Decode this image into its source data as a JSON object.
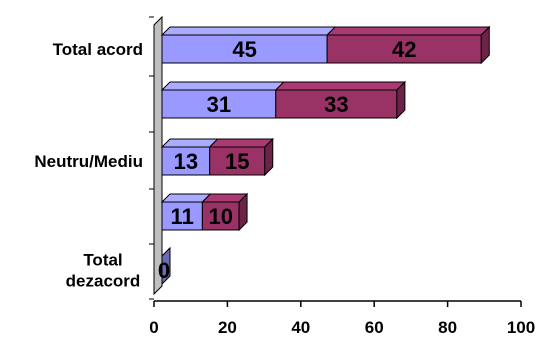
{
  "chart_data": {
    "type": "bar",
    "orientation": "horizontal",
    "stacked": true,
    "three_d": true,
    "categories": [
      "Total acord",
      "",
      "Neutru/Mediu",
      "",
      "Total dezacord"
    ],
    "category_label_lines": [
      [
        "Total acord"
      ],
      [],
      [
        "Neutru/Mediu"
      ],
      [],
      [
        "Total",
        "dezacord"
      ]
    ],
    "series": [
      {
        "values": [
          45,
          31,
          13,
          11,
          0
        ],
        "color": "#9999ff"
      },
      {
        "values": [
          42,
          33,
          15,
          10,
          0
        ],
        "color": "#993366"
      }
    ],
    "data_labels": [
      [
        "45",
        "31",
        "13",
        "11",
        "0"
      ],
      [
        "42",
        "33",
        "15",
        "10",
        ""
      ]
    ],
    "xlim": [
      0,
      100
    ],
    "x_ticks": [
      0,
      20,
      40,
      60,
      80,
      100
    ],
    "x_tick_labels": [
      "0",
      "20",
      "40",
      "60",
      "80",
      "100"
    ],
    "grid": false,
    "legend": "none",
    "title": "",
    "xlabel": "",
    "ylabel": "",
    "colors": {
      "wall": "#c0c0c0",
      "outline": "#000000",
      "background": "#ffffff"
    }
  }
}
